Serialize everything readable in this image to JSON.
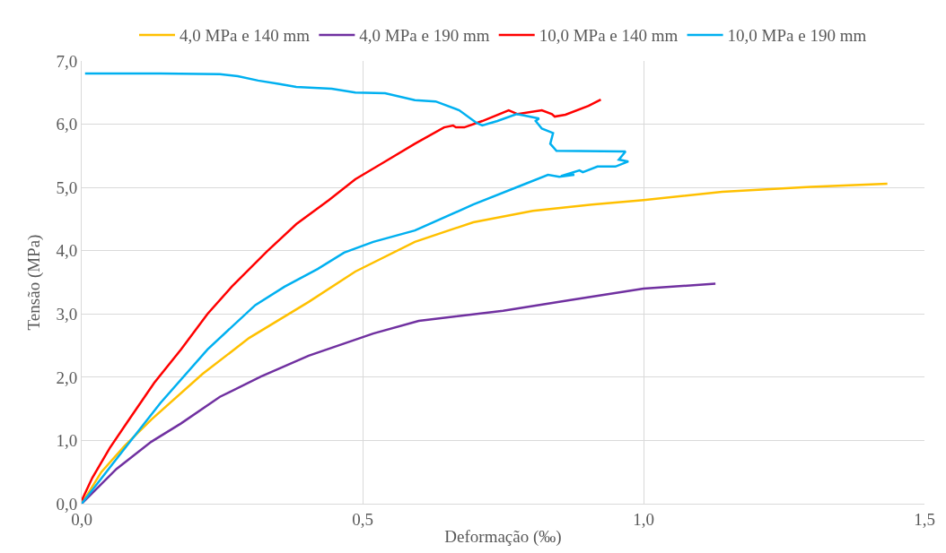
{
  "chart_data": {
    "type": "line",
    "xlabel": "Deformação (‰)",
    "ylabel": "Tensão (MPa)",
    "xlim": [
      0,
      1.5
    ],
    "ylim": [
      0,
      7
    ],
    "xticks": [
      {
        "value": 0,
        "label": "0,0"
      },
      {
        "value": 0.5,
        "label": "0,5"
      },
      {
        "value": 1,
        "label": "1,0"
      },
      {
        "value": 1.5,
        "label": "1,5"
      }
    ],
    "yticks": [
      {
        "value": 0,
        "label": "0,0"
      },
      {
        "value": 1,
        "label": "1,0"
      },
      {
        "value": 2,
        "label": "2,0"
      },
      {
        "value": 3,
        "label": "3,0"
      },
      {
        "value": 4,
        "label": "4,0"
      },
      {
        "value": 5,
        "label": "5,0"
      },
      {
        "value": 6,
        "label": "6,0"
      },
      {
        "value": 7,
        "label": "7,0"
      }
    ],
    "grid": true,
    "legend": "top",
    "marker": "none",
    "line_style": "solid",
    "series": [
      {
        "name": "4,0 MPa e 140 mm",
        "color": "#ffc000",
        "x": [
          0,
          0.035,
          0.077,
          0.124,
          0.215,
          0.298,
          0.404,
          0.487,
          0.593,
          0.697,
          0.803,
          0.908,
          1.0,
          1.14,
          1.297,
          1.434
        ],
        "values": [
          0,
          0.5,
          0.92,
          1.33,
          2.05,
          2.62,
          3.19,
          3.67,
          4.14,
          4.45,
          4.63,
          4.73,
          4.8,
          4.93,
          5.01,
          5.06
        ]
      },
      {
        "name": "4,0 MPa e 190 mm",
        "color": "#7030a0",
        "x": [
          0,
          0.062,
          0.124,
          0.177,
          0.246,
          0.319,
          0.404,
          0.519,
          0.6,
          0.75,
          0.87,
          1.0,
          1.128
        ],
        "values": [
          0,
          0.55,
          0.98,
          1.27,
          1.69,
          2.01,
          2.34,
          2.69,
          2.89,
          3.05,
          3.22,
          3.4,
          3.48
        ]
      },
      {
        "name": "10,0 MPa e 140 mm",
        "color": "#ff0000",
        "x": [
          0,
          0.019,
          0.05,
          0.082,
          0.129,
          0.177,
          0.224,
          0.267,
          0.33,
          0.382,
          0.44,
          0.487,
          0.54,
          0.593,
          0.645,
          0.661,
          0.666,
          0.681,
          0.713,
          0.76,
          0.776,
          0.819,
          0.837,
          0.842,
          0.861,
          0.902,
          0.924
        ],
        "values": [
          0.05,
          0.41,
          0.88,
          1.3,
          1.91,
          2.44,
          3.0,
          3.43,
          3.99,
          4.42,
          4.8,
          5.13,
          5.41,
          5.69,
          5.95,
          5.98,
          5.95,
          5.95,
          6.05,
          6.22,
          6.16,
          6.22,
          6.16,
          6.12,
          6.15,
          6.29,
          6.39
        ]
      },
      {
        "name": "10,0 MPa e 190 mm",
        "color": "#00b0f0",
        "x": [
          0,
          0.077,
          0.14,
          0.224,
          0.309,
          0.361,
          0.42,
          0.467,
          0.519,
          0.593,
          0.697,
          0.782,
          0.83,
          0.85,
          0.877,
          0.853,
          0.886,
          0.892,
          0.918,
          0.95,
          0.973,
          0.956,
          0.968,
          0.845,
          0.834,
          0.839,
          0.819,
          0.808,
          0.814,
          0.787,
          0.774,
          0.74,
          0.713,
          0.703,
          0.672,
          0.63,
          0.593,
          0.54,
          0.487,
          0.445,
          0.382,
          0.35,
          0.314,
          0.278,
          0.246,
          0.14,
          0.006
        ],
        "values": [
          0,
          0.88,
          1.59,
          2.44,
          3.14,
          3.43,
          3.71,
          3.97,
          4.14,
          4.32,
          4.73,
          5.03,
          5.2,
          5.17,
          5.2,
          5.18,
          5.27,
          5.24,
          5.33,
          5.33,
          5.41,
          5.44,
          5.57,
          5.58,
          5.69,
          5.86,
          5.93,
          6.05,
          6.09,
          6.14,
          6.16,
          6.05,
          5.98,
          6.02,
          6.22,
          6.36,
          6.38,
          6.49,
          6.5,
          6.56,
          6.59,
          6.64,
          6.69,
          6.76,
          6.79,
          6.8,
          6.8
        ]
      }
    ]
  }
}
